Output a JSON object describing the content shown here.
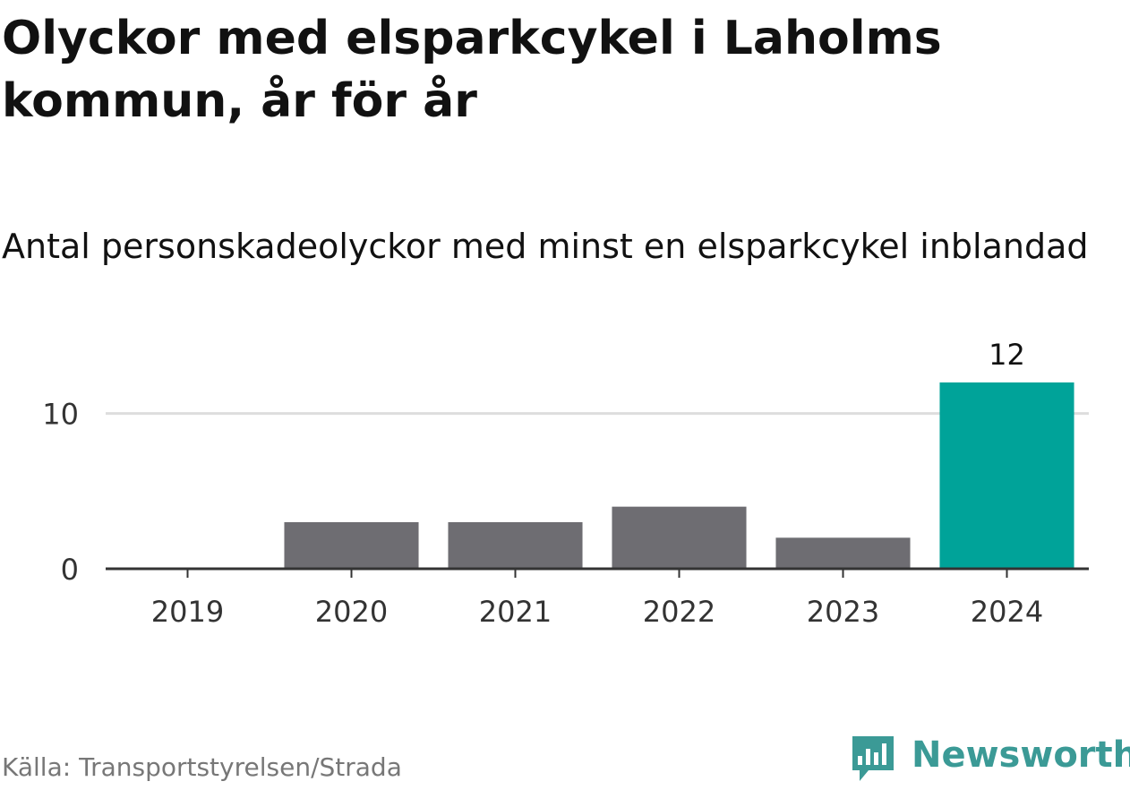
{
  "header": {
    "title": "Olyckor med elsparkcykel i Laholms kommun, år för år",
    "subtitle": "Antal personskadeolyckor med minst en elsparkcykel inblandad"
  },
  "footer": {
    "source": "Källa: Transportstyrelsen/Strada",
    "brand": "Newsworthy"
  },
  "colors": {
    "bar": "#6e6d72",
    "highlight": "#00a399",
    "grid": "#dddddd",
    "axis": "#333333",
    "brand": "#3b9a96"
  },
  "chart_data": {
    "type": "bar",
    "categories": [
      "2019",
      "2020",
      "2021",
      "2022",
      "2023",
      "2024"
    ],
    "values": [
      0,
      3,
      3,
      4,
      2,
      12
    ],
    "highlight_index": 5,
    "data_labels": [
      {
        "index": 5,
        "text": "12"
      }
    ],
    "yticks": [
      0,
      10
    ],
    "ylim": [
      0,
      12
    ],
    "grid": true,
    "xlabel": "",
    "ylabel": ""
  }
}
